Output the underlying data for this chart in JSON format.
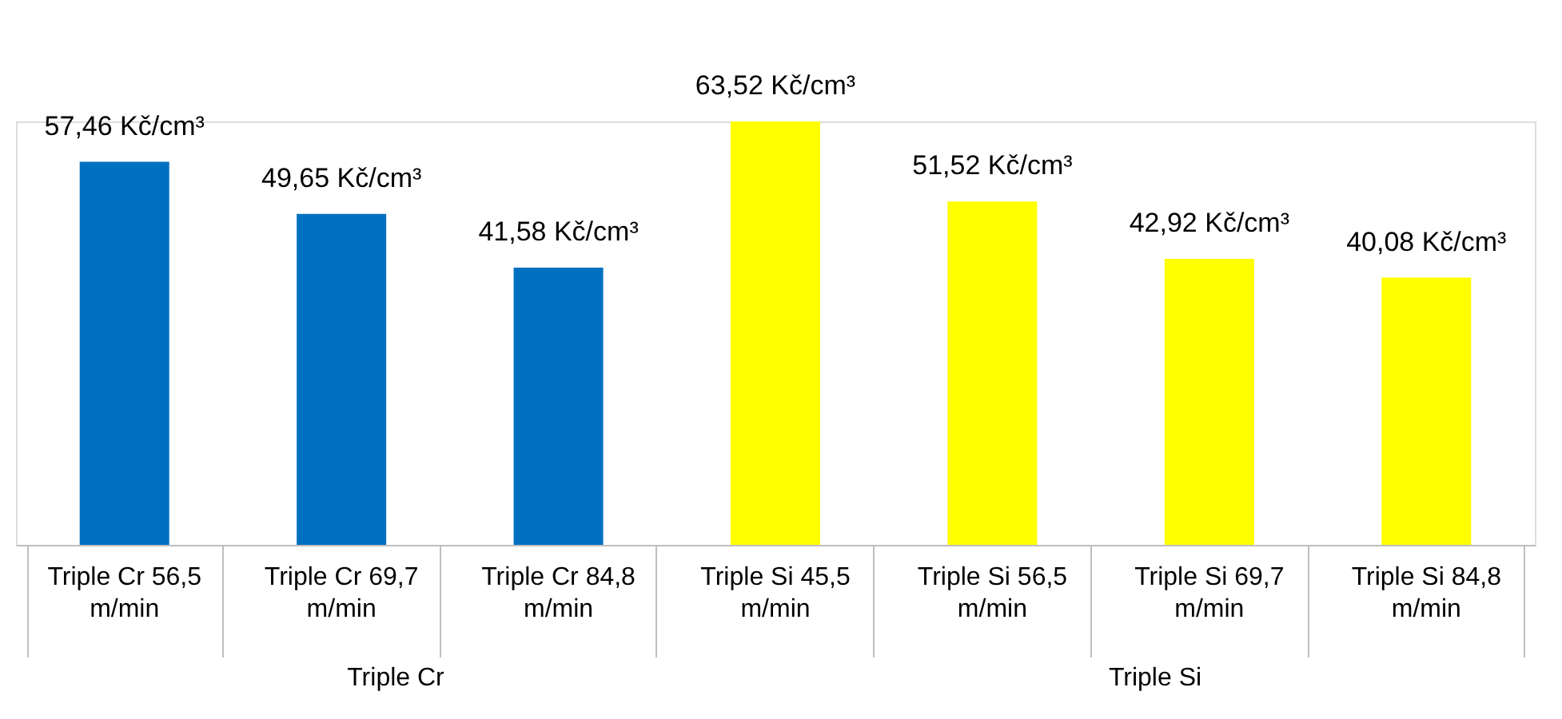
{
  "chart_data": {
    "type": "bar",
    "categories": [
      "Triple Cr 56,5 m/min",
      "Triple Cr 69,7 m/min",
      "Triple Cr 84,8 m/min",
      "Triple Si 45,5 m/min",
      "Triple Si 56,5 m/min",
      "Triple Si 69,7 m/min",
      "Triple Si 84,8 m/min"
    ],
    "values": [
      57.46,
      49.65,
      41.58,
      63.52,
      51.52,
      42.92,
      40.08
    ],
    "value_labels": [
      "57,46 Kč/cm³",
      "49,65 Kč/cm³",
      "41,58 Kč/cm³",
      "63,52 Kč/cm³",
      "51,52 Kč/cm³",
      "42,92 Kč/cm³",
      "40,08 Kč/cm³"
    ],
    "colors": [
      "#0070c0",
      "#0070c0",
      "#0070c0",
      "#ffff00",
      "#ffff00",
      "#ffff00",
      "#ffff00"
    ],
    "annotations": [
      "Triple Cr",
      "Triple Si"
    ]
  }
}
